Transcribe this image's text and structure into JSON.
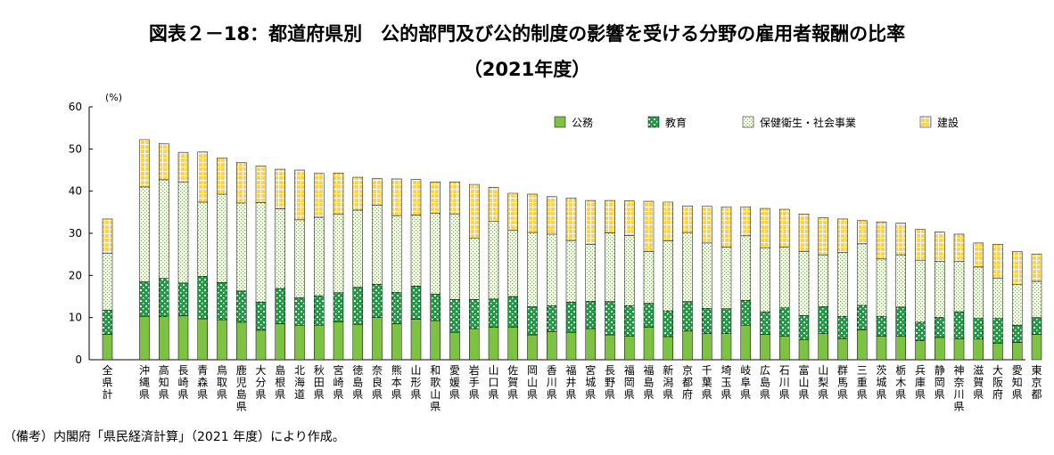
{
  "title": "図表２－18：都道府県別　公的部門及び公的制度の影響を受ける分野の雇用者報酬の比率",
  "subtitle": "（2021年度）",
  "note": "（備考）内閣府「県民経済計算」（2021 年度）により作成。",
  "chart_data": {
    "type": "bar",
    "stacked": true,
    "ylabel": "(%)",
    "ylim": [
      0,
      60
    ],
    "yticks": [
      0,
      10,
      20,
      30,
      40,
      50,
      60
    ],
    "grid": false,
    "legend_position": "top-right",
    "categories": [
      "全県計",
      "沖縄県",
      "高知県",
      "長崎県",
      "青森県",
      "鳥取県",
      "鹿児島県",
      "大分県",
      "島根県",
      "北海道",
      "秋田県",
      "宮崎県",
      "徳島県",
      "奈良県",
      "熊本県",
      "山形県",
      "和歌山県",
      "愛媛県",
      "岩手県",
      "山口県",
      "佐賀県",
      "岡山県",
      "香川県",
      "福井県",
      "宮城県",
      "長野県",
      "福岡県",
      "福島県",
      "新潟県",
      "京都府",
      "千葉県",
      "埼玉県",
      "岐阜県",
      "広島県",
      "石川県",
      "富山県",
      "山梨県",
      "群馬県",
      "三重県",
      "茨城県",
      "栃木県",
      "兵庫県",
      "静岡県",
      "神奈川県",
      "滋賀県",
      "大阪府",
      "愛知県",
      "東京都"
    ],
    "series": [
      {
        "name": "公務",
        "color": "#7dc242",
        "values": [
          6.0,
          10.3,
          10.2,
          10.4,
          9.7,
          9.5,
          8.9,
          7.0,
          8.5,
          8.2,
          8.2,
          9.0,
          8.4,
          10.0,
          8.5,
          9.6,
          9.3,
          6.5,
          7.4,
          7.7,
          7.7,
          5.9,
          6.7,
          6.5,
          7.4,
          5.9,
          5.6,
          7.7,
          5.5,
          6.8,
          6.2,
          6.2,
          8.2,
          6.0,
          5.6,
          4.8,
          6.2,
          5.0,
          7.1,
          5.6,
          5.6,
          4.5,
          5.3,
          5.0,
          4.9,
          3.9,
          4.1,
          6.0
        ]
      },
      {
        "name": "教育",
        "color": "#1a9e3f",
        "values": [
          5.8,
          8.2,
          9.1,
          7.8,
          10.1,
          8.8,
          7.4,
          6.7,
          8.4,
          6.5,
          7.0,
          6.9,
          8.8,
          7.9,
          7.5,
          7.9,
          6.3,
          7.8,
          6.9,
          6.7,
          7.3,
          6.7,
          6.1,
          7.2,
          6.5,
          7.9,
          7.2,
          5.7,
          6.1,
          7.0,
          6.0,
          5.9,
          5.9,
          5.4,
          6.7,
          5.7,
          6.4,
          5.3,
          5.8,
          4.7,
          6.9,
          4.4,
          4.8,
          6.4,
          4.9,
          5.9,
          4.1,
          4.0
        ]
      },
      {
        "name": "保健衛生・社会事業",
        "color": "#d8e8b8",
        "values": [
          13.5,
          22.5,
          23.4,
          23.9,
          17.6,
          21.0,
          20.9,
          23.6,
          18.9,
          18.5,
          18.6,
          18.6,
          18.3,
          18.8,
          18.2,
          16.8,
          19.2,
          20.3,
          14.6,
          18.4,
          15.7,
          17.6,
          17.0,
          14.6,
          13.5,
          16.3,
          16.7,
          12.3,
          16.6,
          16.4,
          15.5,
          14.6,
          15.3,
          15.2,
          14.4,
          15.2,
          12.3,
          15.2,
          14.6,
          13.6,
          12.4,
          14.6,
          13.2,
          11.9,
          12.2,
          9.5,
          9.7,
          8.6
        ]
      },
      {
        "name": "建設",
        "color": "#ffd24d",
        "values": [
          8.1,
          11.2,
          8.6,
          7.1,
          11.9,
          8.6,
          9.6,
          8.7,
          9.4,
          11.8,
          10.4,
          9.8,
          7.8,
          6.3,
          8.7,
          8.5,
          7.4,
          7.6,
          12.7,
          8.1,
          8.8,
          9.1,
          8.9,
          10.1,
          10.4,
          7.7,
          8.2,
          11.9,
          9.2,
          6.3,
          8.7,
          9.6,
          6.9,
          9.3,
          9.0,
          8.9,
          8.8,
          7.9,
          5.5,
          8.8,
          7.5,
          7.4,
          7.0,
          6.5,
          5.7,
          8.1,
          7.8,
          6.5
        ]
      }
    ]
  }
}
